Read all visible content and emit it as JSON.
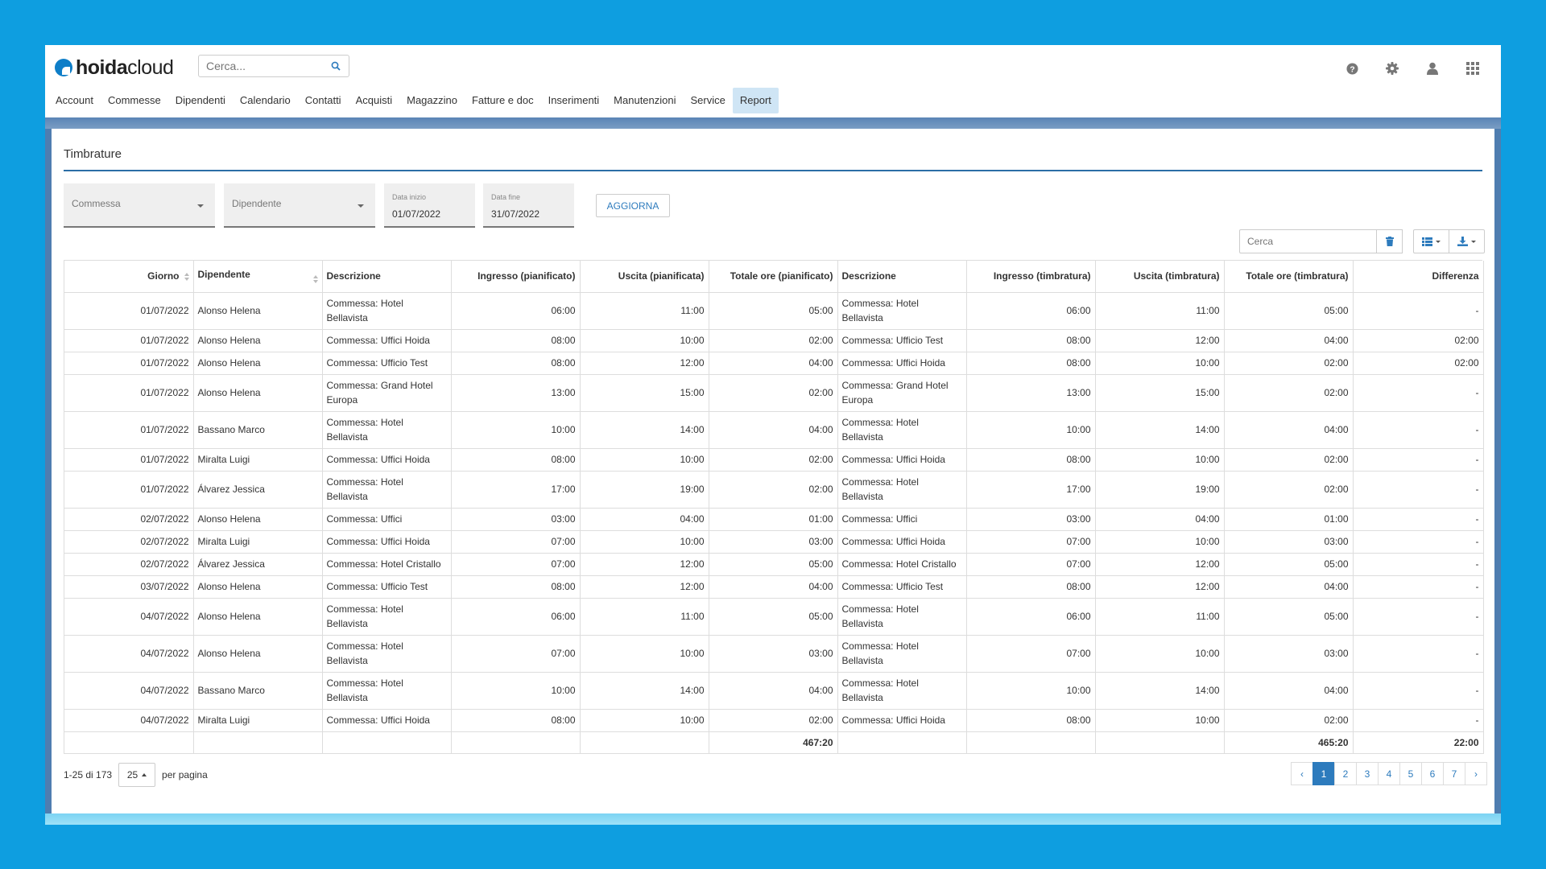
{
  "app": {
    "logo": {
      "bold": "hoida",
      "light": "cloud"
    },
    "search_placeholder": "Cerca...",
    "icons": [
      "help-icon",
      "gear-icon",
      "user-icon",
      "apps-grid-icon"
    ]
  },
  "nav": [
    "Account",
    "Commesse",
    "Dipendenti",
    "Calendario",
    "Contatti",
    "Acquisti",
    "Magazzino",
    "Fatture e doc",
    "Inserimenti",
    "Manutenzioni",
    "Service",
    "Report"
  ],
  "nav_active": "Report",
  "page": {
    "title": "Timbrature"
  },
  "filters": {
    "commessa": "Commessa",
    "dipendente": "Dipendente",
    "data_inizio_label": "Data inizio",
    "data_inizio": "01/07/2022",
    "data_fine_label": "Data fine",
    "data_fine": "31/07/2022",
    "aggiorna": "AGGIORNA"
  },
  "table_tools": {
    "search_placeholder": "Cerca"
  },
  "table": {
    "columns": [
      "Giorno",
      "Dipendente",
      "Descrizione",
      "Ingresso (pianificato)",
      "Uscita (pianificata)",
      "Totale ore (pianificato)",
      "Descrizione",
      "Ingresso (timbratura)",
      "Uscita (timbratura)",
      "Totale ore (timbratura)",
      "Differenza"
    ],
    "rows": [
      [
        "01/07/2022",
        "Alonso Helena",
        "Commessa: Hotel Bellavista",
        "06:00",
        "11:00",
        "05:00",
        "Commessa: Hotel Bellavista",
        "06:00",
        "11:00",
        "05:00",
        "-"
      ],
      [
        "01/07/2022",
        "Alonso Helena",
        "Commessa: Uffici Hoida",
        "08:00",
        "10:00",
        "02:00",
        "Commessa: Ufficio Test",
        "08:00",
        "12:00",
        "04:00",
        "02:00"
      ],
      [
        "01/07/2022",
        "Alonso Helena",
        "Commessa: Ufficio Test",
        "08:00",
        "12:00",
        "04:00",
        "Commessa: Uffici Hoida",
        "08:00",
        "10:00",
        "02:00",
        "02:00"
      ],
      [
        "01/07/2022",
        "Alonso Helena",
        "Commessa: Grand Hotel Europa",
        "13:00",
        "15:00",
        "02:00",
        "Commessa: Grand Hotel Europa",
        "13:00",
        "15:00",
        "02:00",
        "-"
      ],
      [
        "01/07/2022",
        "Bassano Marco",
        "Commessa: Hotel Bellavista",
        "10:00",
        "14:00",
        "04:00",
        "Commessa: Hotel Bellavista",
        "10:00",
        "14:00",
        "04:00",
        "-"
      ],
      [
        "01/07/2022",
        "Miralta Luigi",
        "Commessa: Uffici Hoida",
        "08:00",
        "10:00",
        "02:00",
        "Commessa: Uffici Hoida",
        "08:00",
        "10:00",
        "02:00",
        "-"
      ],
      [
        "01/07/2022",
        "Álvarez Jessica",
        "Commessa: Hotel Bellavista",
        "17:00",
        "19:00",
        "02:00",
        "Commessa: Hotel Bellavista",
        "17:00",
        "19:00",
        "02:00",
        "-"
      ],
      [
        "02/07/2022",
        "Alonso Helena",
        "Commessa: Uffici",
        "03:00",
        "04:00",
        "01:00",
        "Commessa: Uffici",
        "03:00",
        "04:00",
        "01:00",
        "-"
      ],
      [
        "02/07/2022",
        "Miralta Luigi",
        "Commessa: Uffici Hoida",
        "07:00",
        "10:00",
        "03:00",
        "Commessa: Uffici Hoida",
        "07:00",
        "10:00",
        "03:00",
        "-"
      ],
      [
        "02/07/2022",
        "Álvarez Jessica",
        "Commessa: Hotel Cristallo",
        "07:00",
        "12:00",
        "05:00",
        "Commessa: Hotel Cristallo",
        "07:00",
        "12:00",
        "05:00",
        "-"
      ],
      [
        "03/07/2022",
        "Alonso Helena",
        "Commessa: Ufficio Test",
        "08:00",
        "12:00",
        "04:00",
        "Commessa: Ufficio Test",
        "08:00",
        "12:00",
        "04:00",
        "-"
      ],
      [
        "04/07/2022",
        "Alonso Helena",
        "Commessa: Hotel Bellavista",
        "06:00",
        "11:00",
        "05:00",
        "Commessa: Hotel Bellavista",
        "06:00",
        "11:00",
        "05:00",
        "-"
      ],
      [
        "04/07/2022",
        "Alonso Helena",
        "Commessa: Hotel Bellavista",
        "07:00",
        "10:00",
        "03:00",
        "Commessa: Hotel Bellavista",
        "07:00",
        "10:00",
        "03:00",
        "-"
      ],
      [
        "04/07/2022",
        "Bassano Marco",
        "Commessa: Hotel Bellavista",
        "10:00",
        "14:00",
        "04:00",
        "Commessa: Hotel Bellavista",
        "10:00",
        "14:00",
        "04:00",
        "-"
      ],
      [
        "04/07/2022",
        "Miralta Luigi",
        "Commessa: Uffici Hoida",
        "08:00",
        "10:00",
        "02:00",
        "Commessa: Uffici Hoida",
        "08:00",
        "10:00",
        "02:00",
        "-"
      ]
    ],
    "totals": {
      "totale_pianificato": "467:20",
      "totale_timbratura": "465:20",
      "differenza": "22:00"
    }
  },
  "pager": {
    "range": "1-25 di 173",
    "per_page": "25",
    "per_page_label": "per pagina",
    "prev": "‹",
    "pages": [
      "1",
      "2",
      "3",
      "4",
      "5",
      "6",
      "7"
    ],
    "current": "1",
    "next": "›"
  },
  "colors": {
    "background": "#0e9ee0",
    "accent": "#2d7bbd",
    "active_tab": "#cfe5f5"
  }
}
